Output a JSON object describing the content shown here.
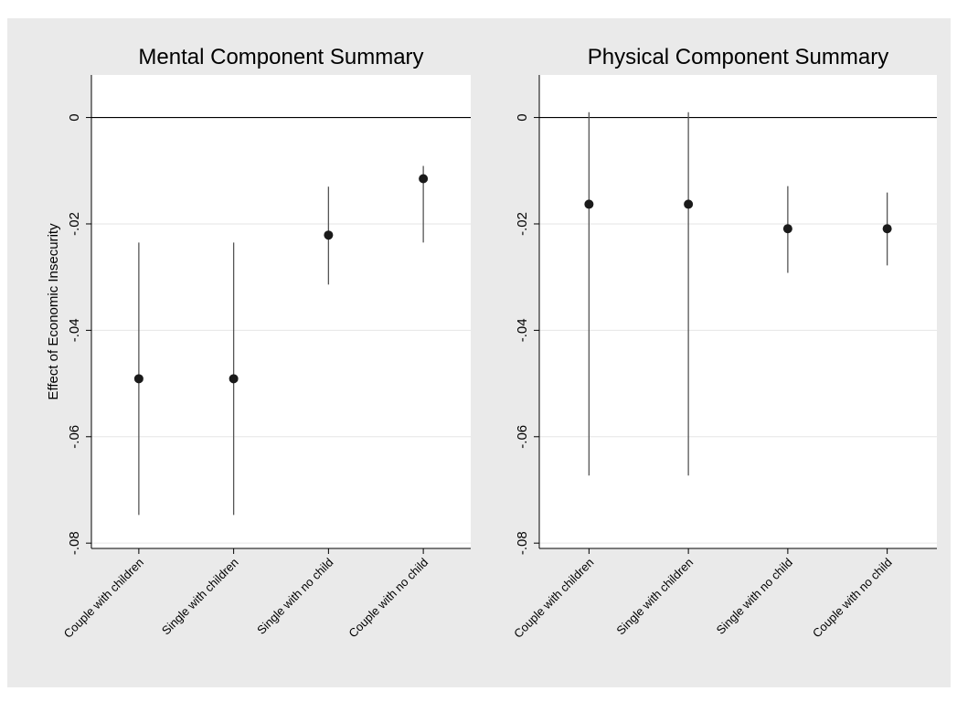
{
  "chart_data": [
    {
      "type": "errorbar",
      "title": "Mental Component Summary",
      "y_label": "Effect of Economic Insecurity",
      "categories": [
        "Couple with children",
        "Single with children",
        "Single with no child",
        "Couple with no child"
      ],
      "values": [
        -0.0491,
        -0.0491,
        -0.0221,
        -0.0115
      ],
      "lower": [
        -0.0747,
        -0.0747,
        -0.0314,
        -0.0235
      ],
      "upper": [
        -0.0235,
        -0.0235,
        -0.013,
        -0.0091
      ],
      "color": "#1a1a1a",
      "refline": 0,
      "ylim": [
        -0.081,
        0.008
      ],
      "yticks": [
        0,
        {
          "value": -0.02,
          "label": "-.02"
        },
        {
          "value": -0.04,
          "label": "-.04"
        },
        {
          "value": -0.06,
          "label": "-.06"
        },
        {
          "value": -0.08,
          "label": "-.08"
        }
      ],
      "grid": true
    },
    {
      "type": "errorbar",
      "title": "Physical Component Summary",
      "categories": [
        "Couple with children",
        "Single with children",
        "Single with no child",
        "Couple with no child"
      ],
      "values": [
        -0.0163,
        -0.0163,
        -0.0209,
        -0.0209
      ],
      "lower": [
        -0.0673,
        -0.0673,
        -0.0292,
        -0.0278
      ],
      "upper": [
        0.001,
        0.001,
        -0.0129,
        -0.0141
      ],
      "color": "#1a1a1a",
      "refline": 0,
      "ylim": [
        -0.081,
        0.008
      ],
      "yticks": [
        0,
        {
          "value": -0.02,
          "label": "-.02"
        },
        {
          "value": -0.04,
          "label": "-.04"
        },
        {
          "value": -0.06,
          "label": "-.06"
        },
        {
          "value": -0.08,
          "label": "-.08"
        }
      ],
      "grid": true
    }
  ]
}
